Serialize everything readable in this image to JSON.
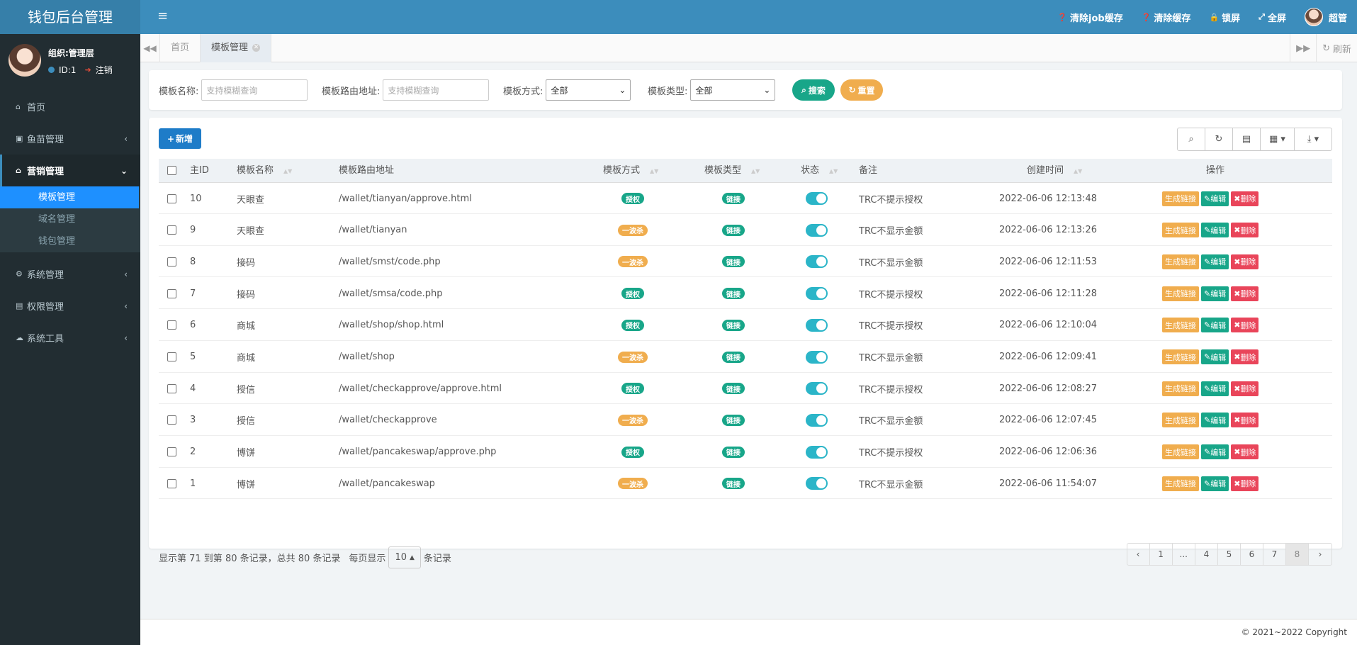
{
  "app": {
    "title": "钱包后台管理"
  },
  "topnav": [
    {
      "icon": "question-circle-icon",
      "label": "清除job缓存"
    },
    {
      "icon": "question-circle-icon",
      "label": "清除缓存"
    },
    {
      "icon": "lock-icon",
      "label": "锁屏"
    },
    {
      "icon": "expand-icon",
      "label": "全屏"
    }
  ],
  "user": {
    "name": "超管",
    "org": "组织:管理层",
    "id_label": "ID:1",
    "logout_label": "注销"
  },
  "sidebar": {
    "items": [
      {
        "icon": "home-icon",
        "label": "首页"
      },
      {
        "icon": "money-icon",
        "label": "鱼苗管理"
      },
      {
        "icon": "bank-icon",
        "label": "营销管理"
      },
      {
        "icon": "gear-icon",
        "label": "系统管理"
      },
      {
        "icon": "id-card-icon",
        "label": "权限管理"
      },
      {
        "icon": "cloud-icon",
        "label": "系统工具"
      }
    ],
    "sub_items": [
      {
        "label": "模板管理"
      },
      {
        "label": "域名管理"
      },
      {
        "label": "钱包管理"
      }
    ]
  },
  "tabs": [
    {
      "label": "首页"
    },
    {
      "label": "模板管理"
    }
  ],
  "refresh_label": "刷新",
  "search": {
    "name_label": "模板名称:",
    "name_placeholder": "支持模糊查询",
    "path_label": "模板路由地址:",
    "path_placeholder": "支持模糊查询",
    "method_label": "模板方式:",
    "method_value": "全部",
    "type_label": "模板类型:",
    "type_value": "全部",
    "search_btn": "搜索",
    "reset_btn": "重置"
  },
  "toolbar": {
    "add_label": "新增"
  },
  "columns": [
    "主ID",
    "模板名称",
    "模板路由地址",
    "模板方式",
    "模板类型",
    "状态",
    "备注",
    "创建时间",
    "操作"
  ],
  "rows": [
    {
      "id": "10",
      "name": "天眼查",
      "path": "/wallet/tianyan/approve.html",
      "method": "授权",
      "type": "链接",
      "note": "TRC不提示授权",
      "time": "2022-06-06 12:13:48"
    },
    {
      "id": "9",
      "name": "天眼查",
      "path": "/wallet/tianyan",
      "method": "一波杀",
      "type": "链接",
      "note": "TRC不显示金额",
      "time": "2022-06-06 12:13:26"
    },
    {
      "id": "8",
      "name": "接码",
      "path": "/wallet/smst/code.php",
      "method": "一波杀",
      "type": "链接",
      "note": "TRC不显示金额",
      "time": "2022-06-06 12:11:53"
    },
    {
      "id": "7",
      "name": "接码",
      "path": "/wallet/smsa/code.php",
      "method": "授权",
      "type": "链接",
      "note": "TRC不提示授权",
      "time": "2022-06-06 12:11:28"
    },
    {
      "id": "6",
      "name": "商城",
      "path": "/wallet/shop/shop.html",
      "method": "授权",
      "type": "链接",
      "note": "TRC不提示授权",
      "time": "2022-06-06 12:10:04"
    },
    {
      "id": "5",
      "name": "商城",
      "path": "/wallet/shop",
      "method": "一波杀",
      "type": "链接",
      "note": "TRC不显示金额",
      "time": "2022-06-06 12:09:41"
    },
    {
      "id": "4",
      "name": "授信",
      "path": "/wallet/checkapprove/approve.html",
      "method": "授权",
      "type": "链接",
      "note": "TRC不提示授权",
      "time": "2022-06-06 12:08:27"
    },
    {
      "id": "3",
      "name": "授信",
      "path": "/wallet/checkapprove",
      "method": "一波杀",
      "type": "链接",
      "note": "TRC不显示金额",
      "time": "2022-06-06 12:07:45"
    },
    {
      "id": "2",
      "name": "博饼",
      "path": "/wallet/pancakeswap/approve.php",
      "method": "授权",
      "type": "链接",
      "note": "TRC不提示授权",
      "time": "2022-06-06 12:06:36"
    },
    {
      "id": "1",
      "name": "博饼",
      "path": "/wallet/pancakeswap",
      "method": "一波杀",
      "type": "链接",
      "note": "TRC不显示金额",
      "time": "2022-06-06 11:54:07"
    }
  ],
  "actions": {
    "gen": "生成链接",
    "edit": "编辑",
    "del": "删除"
  },
  "pagination": {
    "info": "显示第 71 到第 80 条记录，总共 80 条记录",
    "per_page_prefix": "每页显示",
    "per_page": "10",
    "per_page_suffix": "条记录",
    "pages": [
      "‹",
      "1",
      "...",
      "4",
      "5",
      "6",
      "7",
      "8",
      "›"
    ],
    "current": "8"
  },
  "copyright": "© 2021~2022 Copyright",
  "colors": {
    "topbar": "#3c8dbc",
    "sidebar": "#222d32",
    "green": "#18a689",
    "orange": "#f0ad4e",
    "red": "#e9455a",
    "teal": "#2bb5c8",
    "blue": "#1e7cc8"
  }
}
